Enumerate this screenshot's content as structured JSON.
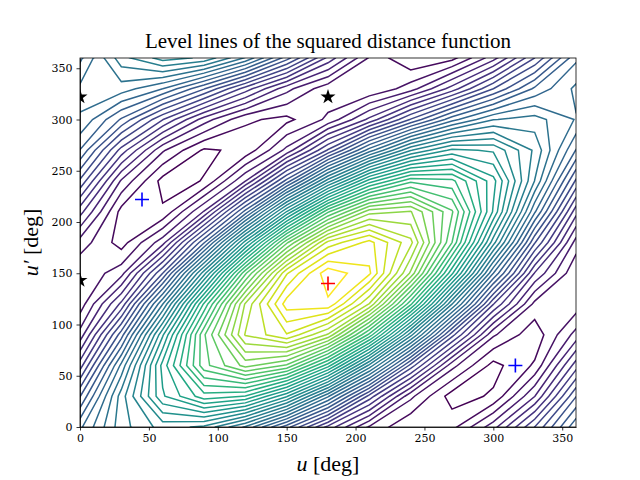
{
  "chart_data": {
    "type": "contour",
    "title": "Level lines of the squared distance function",
    "x_label": "u [deg]",
    "y_label": "u′ [deg]",
    "xlim": [
      0,
      360
    ],
    "ylim": [
      0,
      360
    ],
    "xticks": [
      0,
      50,
      100,
      150,
      200,
      250,
      300,
      350
    ],
    "yticks": [
      0,
      50,
      100,
      150,
      200,
      250,
      300,
      350
    ],
    "color": "viridis",
    "x": [
      0,
      30,
      60,
      90,
      120,
      150,
      180,
      210,
      240,
      270,
      300,
      330,
      360
    ],
    "y": [
      0,
      30,
      60,
      90,
      120,
      150,
      180,
      210,
      240,
      270,
      300,
      330,
      360
    ],
    "z": [
      [
        2.766,
        3.338,
        3.613,
        3.52,
        3.081,
        2.416,
        1.702,
        1.13,
        0.855,
        0.948,
        1.387,
        2.052,
        2.766
      ],
      [
        2.342,
        3.324,
        4.128,
        4.537,
        4.444,
        3.871,
        2.974,
        1.992,
        1.188,
        0.779,
        0.872,
        1.445,
        2.342
      ],
      [
        1.827,
        2.992,
        4.206,
        5.144,
        5.553,
        5.326,
        4.521,
        3.356,
        2.142,
        1.204,
        0.795,
        1.022,
        1.827
      ],
      [
        1.357,
        2.43,
        3.827,
        5.175,
        6.113,
        6.388,
        5.929,
        4.856,
        3.459,
        2.111,
        1.173,
        0.898,
        1.357
      ],
      [
        1.061,
        1.788,
        3.093,
        4.624,
        5.972,
        6.776,
        6.819,
        6.092,
        4.787,
        3.256,
        1.908,
        1.104,
        1.061
      ],
      [
        1.015,
        1.24,
        2.199,
        3.638,
        5.169,
        6.383,
        6.955,
        6.73,
        5.771,
        4.332,
        2.801,
        1.587,
        1.015
      ],
      [
        1.234,
        0.93,
        1.387,
        2.48,
        3.919,
        5.316,
        6.298,
        6.602,
        6.145,
        5.052,
        3.613,
        2.216,
        1.234
      ],
      [
        1.658,
        0.944,
        0.872,
        1.463,
        2.556,
        3.861,
        5.026,
        5.74,
        5.812,
        5.221,
        4.128,
        2.823,
        1.658
      ],
      [
        2.173,
        1.276,
        0.794,
        0.856,
        1.447,
        2.406,
        3.479,
        4.376,
        4.858,
        4.796,
        4.205,
        3.246,
        2.173
      ],
      [
        2.643,
        1.838,
        1.173,
        0.825,
        0.887,
        1.344,
        2.071,
        2.876,
        3.541,
        3.889,
        3.827,
        3.37,
        2.643
      ],
      [
        2.939,
        2.48,
        1.907,
        1.376,
        1.028,
        0.956,
        1.181,
        1.64,
        2.213,
        2.744,
        3.092,
        3.164,
        2.939
      ],
      [
        2.985,
        3.028,
        2.801,
        2.362,
        1.831,
        1.349,
        1.045,
        1.002,
        1.229,
        1.668,
        2.199,
        2.681,
        2.985
      ],
      [
        2.766,
        3.338,
        3.613,
        3.52,
        3.081,
        2.416,
        1.702,
        1.13,
        0.855,
        0.948,
        1.387,
        2.052,
        2.766
      ]
    ],
    "levels": [
      0.85,
      1.0,
      1.15,
      1.3,
      1.45,
      1.6,
      1.75,
      1.9,
      2.05,
      2.2,
      2.35,
      2.5,
      2.65,
      2.8,
      2.95,
      3.1,
      3.25,
      3.4,
      3.55,
      3.7,
      3.85,
      4.0,
      4.15,
      4.3,
      4.45,
      4.6,
      4.75,
      4.9,
      5.05,
      5.2,
      5.35,
      5.5,
      5.65,
      5.8,
      5.95,
      6.1,
      6.25,
      6.4,
      6.55,
      6.7,
      6.85
    ],
    "series": [
      {
        "color": "#ff0000",
        "marker": "plus",
        "x": [
          180
        ],
        "y": [
          140
        ]
      },
      {
        "color": "#0000ff",
        "marker": "plus",
        "x": [
          45,
          316
        ],
        "y": [
          222,
          60
        ]
      },
      {
        "color": "#000000",
        "marker": "star",
        "x": [
          0,
          0,
          180
        ],
        "y": [
          143,
          322,
          322
        ]
      }
    ]
  }
}
